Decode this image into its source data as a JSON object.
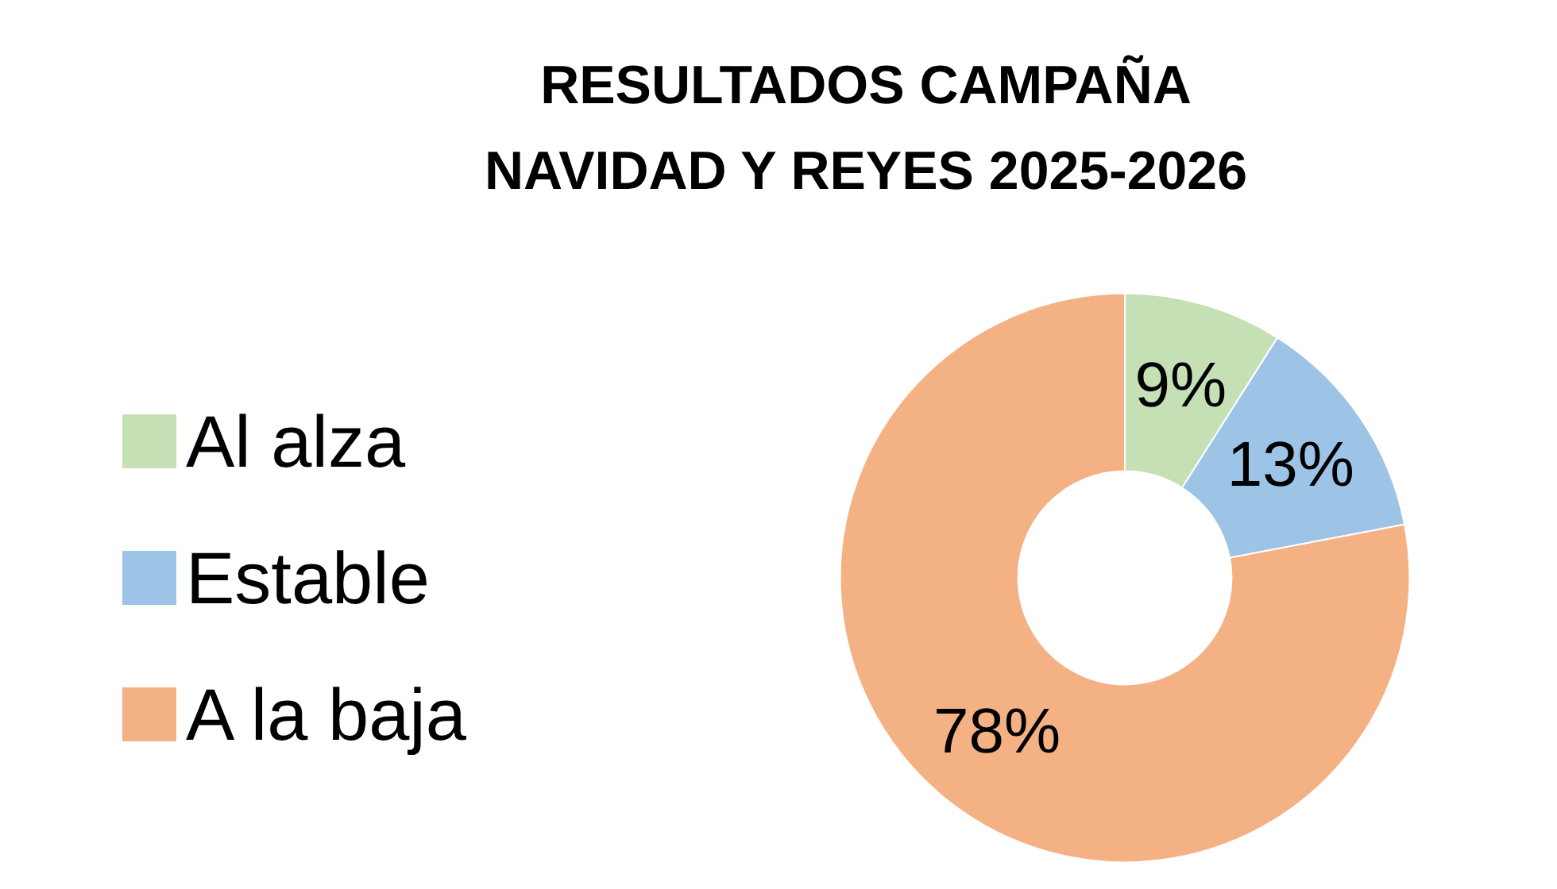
{
  "chart_data": {
    "type": "donut",
    "title": "RESULTADOS CAMPAÑA\nNAVIDAD Y REYES 2025-2026",
    "categories": [
      "Al alza",
      "Estable",
      "A la baja"
    ],
    "values": [
      9,
      13,
      78
    ],
    "colors": [
      "#c5e0b4",
      "#9dc3e6",
      "#f4b183"
    ],
    "value_labels": [
      "9%",
      "13%",
      "78%"
    ],
    "legend": "left"
  }
}
